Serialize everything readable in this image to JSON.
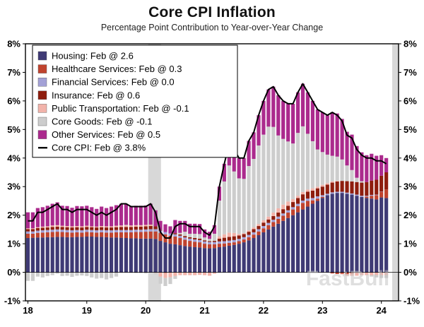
{
  "title": "Core CPI Inflation",
  "subtitle": "Percentage Point Contribution to Year-over-Year Change",
  "watermark": "FastBull",
  "chart_data": {
    "type": "bar",
    "subtype": "stacked-bar-with-line",
    "x_start": "2018-01",
    "x_end": "2024-02",
    "x_tick_labels": [
      "18",
      "19",
      "20",
      "21",
      "22",
      "23",
      "24"
    ],
    "ylim": [
      -1,
      8
    ],
    "y_tick_labels": [
      "-1%",
      "0%",
      "1%",
      "2%",
      "3%",
      "4%",
      "5%",
      "6%",
      "7%",
      "8%"
    ],
    "grid": false,
    "legend_position": "top-left",
    "axis_color": "#000000",
    "recession_bands": [
      {
        "from_month": 25.0,
        "to_month": 27.6
      },
      {
        "from_month": 74.7,
        "to_month": 76.0
      }
    ],
    "band_color": "#d8d8d8",
    "series": [
      {
        "name": "Housing",
        "legend": "Housing: Feb @ 2.6",
        "color": "#3f3a75",
        "values": [
          1.2,
          1.21,
          1.22,
          1.22,
          1.23,
          1.23,
          1.24,
          1.24,
          1.23,
          1.23,
          1.24,
          1.24,
          1.25,
          1.25,
          1.24,
          1.24,
          1.23,
          1.22,
          1.22,
          1.21,
          1.2,
          1.19,
          1.19,
          1.18,
          1.18,
          1.18,
          1.17,
          1.1,
          1.05,
          1.0,
          0.98,
          0.95,
          0.92,
          0.9,
          0.88,
          0.87,
          0.85,
          0.84,
          0.85,
          0.88,
          0.9,
          0.93,
          0.96,
          1.0,
          1.05,
          1.12,
          1.2,
          1.3,
          1.4,
          1.5,
          1.6,
          1.7,
          1.8,
          1.9,
          2.0,
          2.1,
          2.2,
          2.3,
          2.4,
          2.5,
          2.6,
          2.7,
          2.75,
          2.78,
          2.78,
          2.75,
          2.72,
          2.68,
          2.64,
          2.6,
          2.58,
          2.55,
          2.62,
          2.6
        ]
      },
      {
        "name": "Healthcare Services",
        "legend": "Healthcare Services: Feb @ 0.3",
        "color": "#c0432e",
        "values": [
          0.15,
          0.14,
          0.16,
          0.17,
          0.17,
          0.18,
          0.18,
          0.17,
          0.17,
          0.16,
          0.16,
          0.15,
          0.16,
          0.15,
          0.15,
          0.16,
          0.16,
          0.17,
          0.18,
          0.19,
          0.2,
          0.21,
          0.22,
          0.23,
          0.24,
          0.25,
          0.26,
          0.28,
          0.28,
          0.28,
          0.27,
          0.25,
          0.22,
          0.2,
          0.19,
          0.18,
          0.15,
          0.14,
          0.13,
          0.12,
          0.11,
          0.1,
          0.09,
          0.09,
          0.1,
          0.11,
          0.12,
          0.13,
          0.14,
          0.15,
          0.16,
          0.17,
          0.18,
          0.19,
          0.2,
          0.22,
          0.23,
          0.2,
          0.12,
          0.08,
          0.04,
          0.0,
          -0.04,
          -0.06,
          -0.05,
          -0.06,
          -0.04,
          -0.02,
          0.0,
          0.05,
          0.1,
          0.15,
          0.2,
          0.3
        ]
      },
      {
        "name": "Financial Services",
        "legend": "Financial Services: Feb @ 0.0",
        "color": "#a3a1d6",
        "values": [
          0.08,
          0.08,
          0.08,
          0.08,
          0.08,
          0.08,
          0.08,
          0.08,
          0.08,
          0.08,
          0.08,
          0.08,
          0.08,
          0.08,
          0.08,
          0.08,
          0.08,
          0.08,
          0.08,
          0.08,
          0.08,
          0.08,
          0.08,
          0.08,
          0.08,
          0.08,
          0.08,
          0.08,
          0.08,
          0.08,
          0.08,
          0.08,
          0.08,
          0.08,
          0.08,
          0.08,
          0.08,
          0.08,
          0.08,
          0.08,
          0.08,
          0.08,
          0.08,
          0.08,
          0.08,
          0.08,
          0.08,
          0.08,
          0.08,
          0.08,
          0.08,
          0.08,
          0.08,
          0.08,
          0.08,
          0.08,
          0.08,
          0.08,
          0.08,
          0.08,
          0.06,
          0.05,
          0.05,
          0.04,
          0.04,
          0.04,
          0.04,
          0.04,
          0.04,
          0.03,
          0.03,
          0.02,
          0.01,
          0.0
        ]
      },
      {
        "name": "Insurance",
        "legend": "Insurance: Feb @ 0.6",
        "color": "#8e1d0e",
        "values": [
          0.08,
          0.08,
          0.09,
          0.09,
          0.09,
          0.1,
          0.1,
          0.1,
          0.1,
          0.1,
          0.1,
          0.1,
          0.1,
          0.1,
          0.1,
          0.1,
          0.1,
          0.1,
          0.1,
          0.11,
          0.11,
          0.11,
          0.11,
          0.11,
          0.11,
          0.11,
          0.1,
          0.02,
          -0.02,
          0.0,
          0.04,
          0.05,
          0.05,
          0.05,
          0.05,
          0.05,
          0.04,
          0.03,
          0.04,
          0.1,
          0.12,
          0.13,
          0.13,
          0.12,
          0.11,
          0.11,
          0.11,
          0.11,
          0.12,
          0.12,
          0.13,
          0.14,
          0.15,
          0.16,
          0.18,
          0.2,
          0.22,
          0.24,
          0.26,
          0.28,
          0.3,
          0.32,
          0.34,
          0.36,
          0.38,
          0.4,
          0.42,
          0.44,
          0.46,
          0.48,
          0.5,
          0.52,
          0.55,
          0.6
        ]
      },
      {
        "name": "Public Transportation",
        "legend": "Public Transportation: Feb @ -0.1",
        "color": "#f2b3aa",
        "values": [
          0.03,
          0.03,
          0.03,
          0.04,
          0.04,
          0.05,
          0.05,
          0.04,
          0.04,
          0.04,
          0.04,
          0.04,
          0.04,
          0.03,
          0.03,
          0.04,
          0.04,
          0.04,
          0.05,
          0.05,
          0.05,
          0.05,
          0.05,
          0.05,
          0.05,
          0.05,
          -0.02,
          -0.15,
          -0.18,
          -0.17,
          -0.13,
          -0.1,
          -0.1,
          -0.1,
          -0.1,
          -0.09,
          -0.1,
          -0.12,
          -0.05,
          0.08,
          0.12,
          0.15,
          0.12,
          0.05,
          0.03,
          0.05,
          0.06,
          0.07,
          0.08,
          0.1,
          0.12,
          0.15,
          0.16,
          0.15,
          0.1,
          0.08,
          0.08,
          0.08,
          0.08,
          0.06,
          0.06,
          0.05,
          0.04,
          0.02,
          -0.02,
          -0.06,
          -0.08,
          -0.1,
          -0.1,
          -0.1,
          -0.1,
          -0.1,
          -0.1,
          -0.1
        ]
      },
      {
        "name": "Core Goods",
        "legend": "Core Goods: Feb @ -0.1",
        "color": "#cdcdcd",
        "values": [
          -0.3,
          -0.3,
          -0.15,
          -0.18,
          -0.13,
          -0.1,
          -0.05,
          -0.13,
          -0.12,
          -0.16,
          -0.12,
          -0.11,
          -0.13,
          -0.18,
          -0.22,
          -0.2,
          -0.25,
          -0.2,
          -0.15,
          0.0,
          0.02,
          -0.02,
          -0.03,
          -0.03,
          -0.04,
          0.0,
          -0.05,
          -0.25,
          -0.28,
          -0.24,
          -0.1,
          0.05,
          0.15,
          0.12,
          0.15,
          0.16,
          0.1,
          0.08,
          0.25,
          1.25,
          1.85,
          2.35,
          2.15,
          1.95,
          1.9,
          2.25,
          2.4,
          2.75,
          3.0,
          3.15,
          3.0,
          2.55,
          2.3,
          2.1,
          1.95,
          2.2,
          2.3,
          1.95,
          1.65,
          1.3,
          1.15,
          1.0,
          0.9,
          0.85,
          0.75,
          0.55,
          0.4,
          0.15,
          0.05,
          0.0,
          -0.05,
          -0.08,
          -0.1,
          -0.1
        ]
      },
      {
        "name": "Other Services",
        "legend": "Other Services: Feb @ 0.5",
        "color": "#ab2a8d",
        "values": [
          0.56,
          0.56,
          0.67,
          0.68,
          0.72,
          0.76,
          0.8,
          0.7,
          0.7,
          0.65,
          0.7,
          0.7,
          0.7,
          0.67,
          0.62,
          0.68,
          0.64,
          0.69,
          0.72,
          0.76,
          0.74,
          0.68,
          0.68,
          0.68,
          0.68,
          0.73,
          0.56,
          0.32,
          0.27,
          0.25,
          0.46,
          0.42,
          0.38,
          0.35,
          0.35,
          0.35,
          0.28,
          0.25,
          0.3,
          0.49,
          0.62,
          0.76,
          0.77,
          0.71,
          0.73,
          0.88,
          0.93,
          1.06,
          1.18,
          1.3,
          1.41,
          1.41,
          1.33,
          1.32,
          1.39,
          1.42,
          1.49,
          1.45,
          1.41,
          1.4,
          1.39,
          1.38,
          1.52,
          1.51,
          1.42,
          1.18,
          1.24,
          1.11,
          1.01,
          0.94,
          0.94,
          0.84,
          0.72,
          0.5
        ]
      }
    ],
    "line": {
      "name": "Core CPI",
      "legend": "Core CPI: Feb @ 3.8%",
      "color": "#000000",
      "values": [
        1.8,
        1.8,
        2.1,
        2.1,
        2.2,
        2.3,
        2.4,
        2.2,
        2.2,
        2.1,
        2.2,
        2.2,
        2.2,
        2.1,
        2.0,
        2.1,
        2.0,
        2.1,
        2.2,
        2.4,
        2.4,
        2.3,
        2.3,
        2.3,
        2.3,
        2.4,
        2.1,
        1.4,
        1.2,
        1.2,
        1.6,
        1.7,
        1.7,
        1.6,
        1.6,
        1.6,
        1.4,
        1.3,
        1.6,
        3.0,
        3.8,
        4.5,
        4.3,
        4.0,
        4.0,
        4.6,
        4.9,
        5.5,
        6.0,
        6.4,
        6.5,
        6.2,
        6.0,
        5.9,
        5.9,
        6.3,
        6.6,
        6.3,
        6.0,
        5.7,
        5.6,
        5.5,
        5.6,
        5.5,
        5.3,
        4.8,
        4.7,
        4.3,
        4.1,
        4.0,
        4.0,
        3.9,
        3.9,
        3.8
      ]
    }
  }
}
